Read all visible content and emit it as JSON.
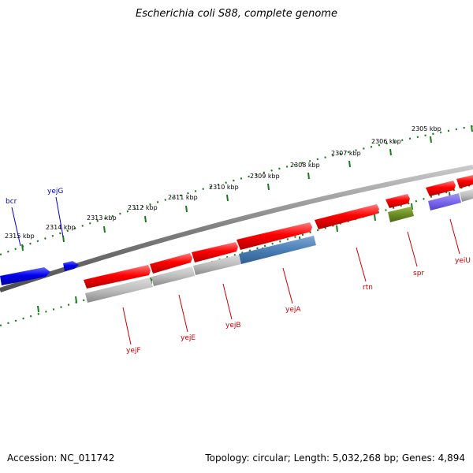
{
  "title": "Escherichia coli S88, complete genome",
  "footer": {
    "accession": "Accession: NC_011742",
    "summary": "Topology: circular; Length: 5,032,268 bp; Genes: 4,894"
  },
  "colors": {
    "backbone": "#808080",
    "scale_ticks": "#1a7a1a",
    "forward_gene": "#ff0000",
    "reverse_gene": "#0000ee",
    "forward_label": "#cc0000",
    "reverse_label": "#0000cc"
  },
  "scale_labels": [
    "2305 kbp",
    "2306 kbp",
    "2307 kbp",
    "2308 kbp",
    "2309 kbp",
    "2310 kbp",
    "2311 kbp",
    "2312 kbp",
    "2313 kbp",
    "2314 kbp",
    "2315 kbp"
  ],
  "genes": [
    {
      "name": "bcr",
      "strand": "reverse"
    },
    {
      "name": "yejG",
      "strand": "reverse"
    },
    {
      "name": "yejF",
      "strand": "forward"
    },
    {
      "name": "yejE",
      "strand": "forward"
    },
    {
      "name": "yejB",
      "strand": "forward"
    },
    {
      "name": "yejA",
      "strand": "forward"
    },
    {
      "name": "rtn",
      "strand": "forward"
    },
    {
      "name": "spr",
      "strand": "forward"
    },
    {
      "name": "yeiU",
      "strand": "forward"
    }
  ]
}
